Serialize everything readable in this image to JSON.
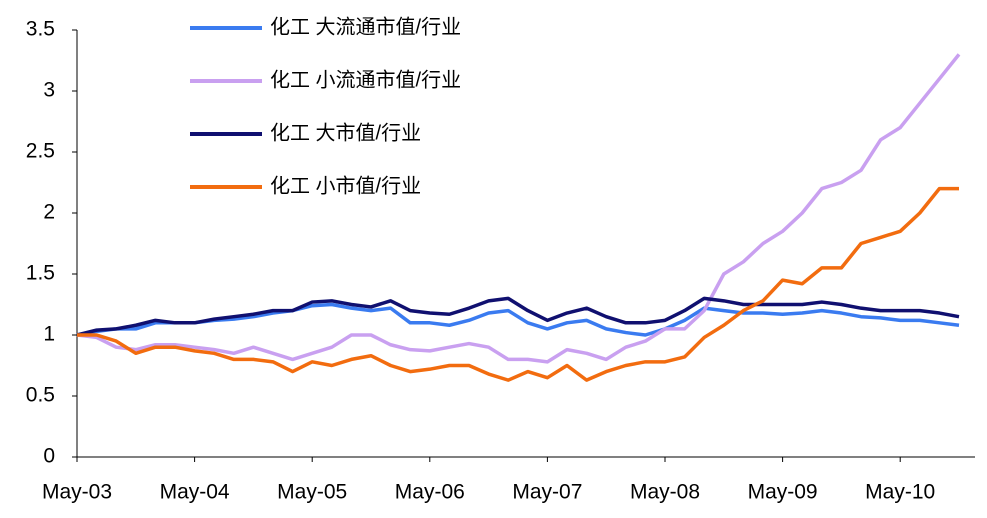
{
  "chart_data": {
    "type": "line",
    "categories": [
      "May-03",
      null,
      null,
      null,
      null,
      null,
      "May-04",
      null,
      null,
      null,
      null,
      null,
      "May-05",
      null,
      null,
      null,
      null,
      null,
      "May-06",
      null,
      null,
      null,
      null,
      null,
      "May-07",
      null,
      null,
      null,
      null,
      null,
      "May-08",
      null,
      null,
      null,
      null,
      null,
      "May-09",
      null,
      null,
      null,
      null,
      null,
      "May-10",
      null,
      null,
      null
    ],
    "ylim": [
      0,
      3.5
    ],
    "yticks": [
      0,
      0.5,
      1,
      1.5,
      2,
      2.5,
      3,
      3.5
    ],
    "series": [
      {
        "name": "化工 大流通市值/行业",
        "color": "#3a7bf0",
        "values": [
          1.0,
          1.03,
          1.05,
          1.05,
          1.1,
          1.1,
          1.1,
          1.12,
          1.13,
          1.15,
          1.18,
          1.2,
          1.24,
          1.25,
          1.22,
          1.2,
          1.22,
          1.1,
          1.1,
          1.08,
          1.12,
          1.18,
          1.2,
          1.1,
          1.05,
          1.1,
          1.12,
          1.05,
          1.02,
          1.0,
          1.05,
          1.12,
          1.22,
          1.2,
          1.18,
          1.18,
          1.17,
          1.18,
          1.2,
          1.18,
          1.15,
          1.14,
          1.12,
          1.12,
          1.1,
          1.08
        ]
      },
      {
        "name": "化工 小流通市值/行业",
        "color": "#c9a0f0",
        "values": [
          1.0,
          0.98,
          0.9,
          0.88,
          0.92,
          0.92,
          0.9,
          0.88,
          0.85,
          0.9,
          0.85,
          0.8,
          0.85,
          0.9,
          1.0,
          1.0,
          0.92,
          0.88,
          0.87,
          0.9,
          0.93,
          0.9,
          0.8,
          0.8,
          0.78,
          0.88,
          0.85,
          0.8,
          0.9,
          0.95,
          1.05,
          1.05,
          1.2,
          1.5,
          1.6,
          1.75,
          1.85,
          2.0,
          2.2,
          2.25,
          2.35,
          2.6,
          2.7,
          2.9,
          3.1,
          3.3
        ]
      },
      {
        "name": "化工 大市值/行业",
        "color": "#101070",
        "values": [
          1.0,
          1.04,
          1.05,
          1.08,
          1.12,
          1.1,
          1.1,
          1.13,
          1.15,
          1.17,
          1.2,
          1.2,
          1.27,
          1.28,
          1.25,
          1.23,
          1.28,
          1.2,
          1.18,
          1.17,
          1.22,
          1.28,
          1.3,
          1.2,
          1.12,
          1.18,
          1.22,
          1.15,
          1.1,
          1.1,
          1.12,
          1.2,
          1.3,
          1.28,
          1.25,
          1.25,
          1.25,
          1.25,
          1.27,
          1.25,
          1.22,
          1.2,
          1.2,
          1.2,
          1.18,
          1.15
        ]
      },
      {
        "name": "化工 小市值/行业",
        "color": "#f26c0f",
        "values": [
          1.0,
          1.0,
          0.95,
          0.85,
          0.9,
          0.9,
          0.87,
          0.85,
          0.8,
          0.8,
          0.78,
          0.7,
          0.78,
          0.75,
          0.8,
          0.83,
          0.75,
          0.7,
          0.72,
          0.75,
          0.75,
          0.68,
          0.63,
          0.7,
          0.65,
          0.75,
          0.63,
          0.7,
          0.75,
          0.78,
          0.78,
          0.82,
          0.98,
          1.08,
          1.2,
          1.28,
          1.45,
          1.42,
          1.55,
          1.55,
          1.75,
          1.8,
          1.85,
          2.0,
          2.2,
          2.2
        ]
      }
    ]
  }
}
